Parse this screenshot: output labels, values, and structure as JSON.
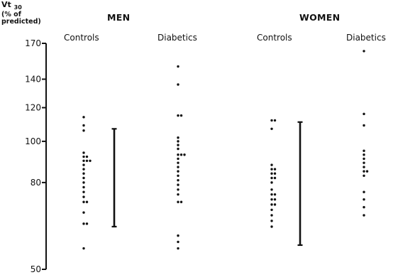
{
  "chart_data": {
    "type": "scatter",
    "title": "",
    "ylabel": {
      "main": "Vt",
      "sub": "30",
      "line2": "(% of",
      "line3": "predicted)"
    },
    "ylim": [
      50,
      170
    ],
    "yscale": "log",
    "yticks": [
      {
        "value": 170,
        "label": "170"
      },
      {
        "value": 140,
        "label": "140"
      },
      {
        "value": 120,
        "label": "120"
      },
      {
        "value": 100,
        "label": "100"
      },
      {
        "value": 80,
        "label": "80"
      },
      {
        "value": 50,
        "label": "50"
      }
    ],
    "groups": [
      {
        "name": "MEN",
        "subgroups": [
          "Controls",
          "Diabetics"
        ]
      },
      {
        "name": "WOMEN",
        "subgroups": [
          "Controls",
          "Diabetics"
        ]
      }
    ],
    "series": [
      {
        "group": "MEN",
        "subgroup": "Controls",
        "points": [
          {
            "col": 0,
            "y": 114
          },
          {
            "col": 0,
            "y": 109
          },
          {
            "col": 0,
            "y": 106
          },
          {
            "col": 0,
            "y": 94
          },
          {
            "col": 0,
            "y": 92
          },
          {
            "col": 1,
            "y": 92
          },
          {
            "col": 0,
            "y": 90
          },
          {
            "col": 1,
            "y": 90
          },
          {
            "col": 2,
            "y": 90
          },
          {
            "col": 0,
            "y": 88
          },
          {
            "col": 0,
            "y": 86
          },
          {
            "col": 0,
            "y": 84
          },
          {
            "col": 0,
            "y": 82
          },
          {
            "col": 0,
            "y": 80
          },
          {
            "col": 0,
            "y": 78
          },
          {
            "col": 0,
            "y": 76
          },
          {
            "col": 0,
            "y": 74
          },
          {
            "col": 0,
            "y": 72
          },
          {
            "col": 1,
            "y": 72
          },
          {
            "col": 0,
            "y": 68
          },
          {
            "col": 0,
            "y": 64
          },
          {
            "col": 1,
            "y": 64
          },
          {
            "col": 0,
            "y": 56
          }
        ]
      },
      {
        "group": "MEN",
        "subgroup": "Diabetics",
        "points": [
          {
            "col": 0,
            "y": 150
          },
          {
            "col": 0,
            "y": 136
          },
          {
            "col": 0,
            "y": 115
          },
          {
            "col": 1,
            "y": 115
          },
          {
            "col": 0,
            "y": 102
          },
          {
            "col": 0,
            "y": 100
          },
          {
            "col": 0,
            "y": 98
          },
          {
            "col": 0,
            "y": 96
          },
          {
            "col": 0,
            "y": 93
          },
          {
            "col": 1,
            "y": 93
          },
          {
            "col": 2,
            "y": 93
          },
          {
            "col": 0,
            "y": 91
          },
          {
            "col": 0,
            "y": 89
          },
          {
            "col": 0,
            "y": 87
          },
          {
            "col": 0,
            "y": 85
          },
          {
            "col": 0,
            "y": 83
          },
          {
            "col": 0,
            "y": 81
          },
          {
            "col": 0,
            "y": 79
          },
          {
            "col": 0,
            "y": 77
          },
          {
            "col": 0,
            "y": 75
          },
          {
            "col": 0,
            "y": 72
          },
          {
            "col": 1,
            "y": 72
          },
          {
            "col": 0,
            "y": 60
          },
          {
            "col": 0,
            "y": 58
          },
          {
            "col": 0,
            "y": 56
          }
        ]
      },
      {
        "group": "WOMEN",
        "subgroup": "Controls",
        "points": [
          {
            "col": 0,
            "y": 112
          },
          {
            "col": 1,
            "y": 112
          },
          {
            "col": 0,
            "y": 107
          },
          {
            "col": 0,
            "y": 88
          },
          {
            "col": 0,
            "y": 86
          },
          {
            "col": 1,
            "y": 86
          },
          {
            "col": 0,
            "y": 84
          },
          {
            "col": 1,
            "y": 84
          },
          {
            "col": 0,
            "y": 82
          },
          {
            "col": 1,
            "y": 82
          },
          {
            "col": 0,
            "y": 80
          },
          {
            "col": 0,
            "y": 77
          },
          {
            "col": 0,
            "y": 75
          },
          {
            "col": 1,
            "y": 75
          },
          {
            "col": 0,
            "y": 73
          },
          {
            "col": 1,
            "y": 73
          },
          {
            "col": 0,
            "y": 71
          },
          {
            "col": 1,
            "y": 71
          },
          {
            "col": 0,
            "y": 69
          },
          {
            "col": 0,
            "y": 67
          },
          {
            "col": 0,
            "y": 65
          },
          {
            "col": 0,
            "y": 63
          }
        ]
      },
      {
        "group": "WOMEN",
        "subgroup": "Diabetics",
        "points": [
          {
            "col": 0,
            "y": 163
          },
          {
            "col": 0,
            "y": 116
          },
          {
            "col": 0,
            "y": 109
          },
          {
            "col": 0,
            "y": 95
          },
          {
            "col": 0,
            "y": 93
          },
          {
            "col": 0,
            "y": 91
          },
          {
            "col": 0,
            "y": 89
          },
          {
            "col": 0,
            "y": 87
          },
          {
            "col": 0,
            "y": 85
          },
          {
            "col": 1,
            "y": 85
          },
          {
            "col": 0,
            "y": 83
          },
          {
            "col": 0,
            "y": 76
          },
          {
            "col": 0,
            "y": 73
          },
          {
            "col": 0,
            "y": 70
          },
          {
            "col": 0,
            "y": 67
          }
        ]
      }
    ],
    "ranges": [
      {
        "group": "MEN",
        "low": 63,
        "high": 107
      },
      {
        "group": "WOMEN",
        "low": 57,
        "high": 111
      }
    ]
  }
}
